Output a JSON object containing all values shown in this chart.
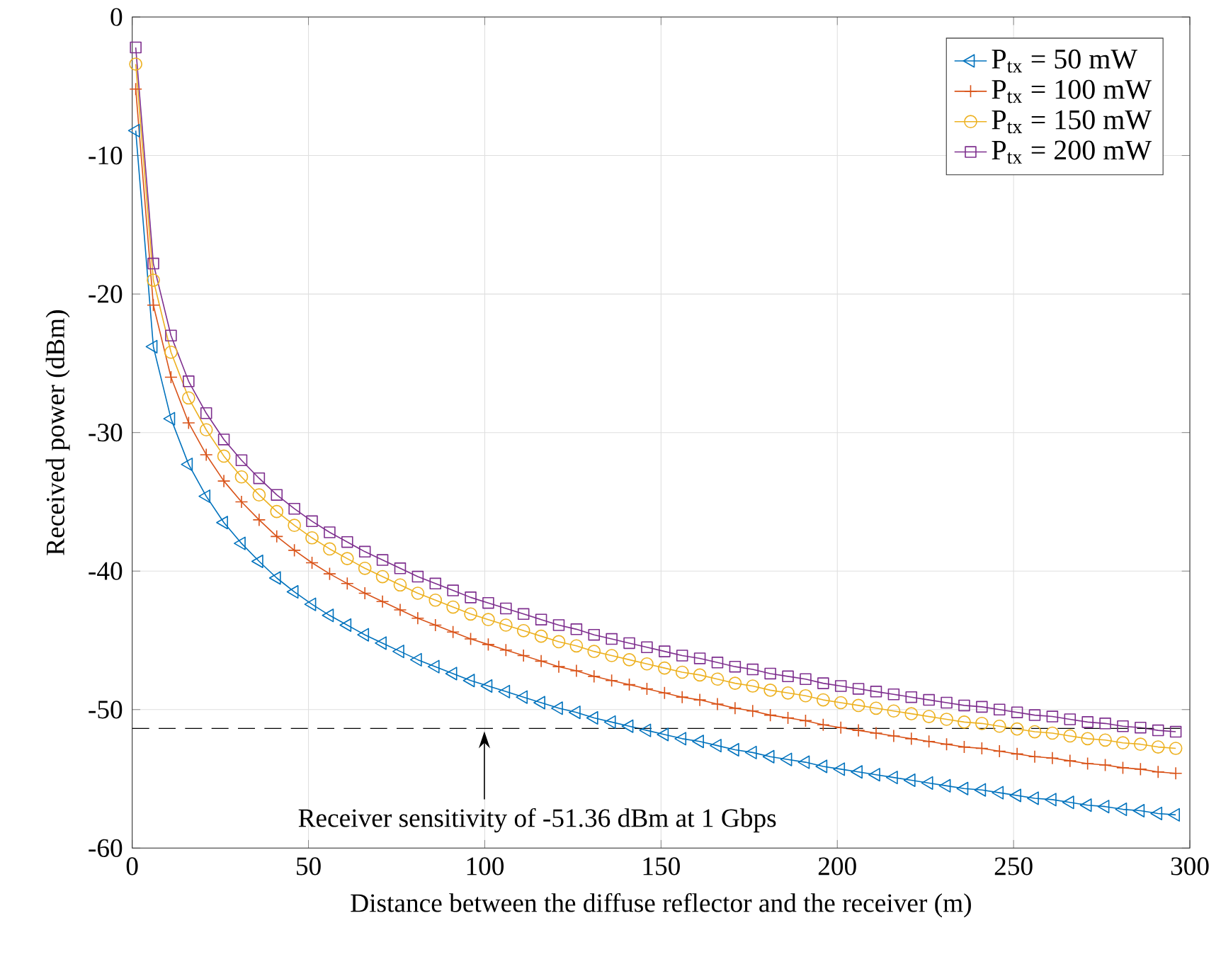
{
  "chart_data": {
    "type": "line",
    "xlabel": "Distance between the diffuse reflector and the receiver (m)",
    "ylabel": "Received power (dBm)",
    "xlim": [
      0,
      300
    ],
    "ylim": [
      -60,
      0
    ],
    "xticks": [
      0,
      50,
      100,
      150,
      200,
      250,
      300
    ],
    "yticks": [
      -60,
      -50,
      -40,
      -30,
      -20,
      -10,
      0
    ],
    "grid": true,
    "legend": "top right",
    "x": [
      1,
      6,
      11,
      16,
      21,
      26,
      31,
      36,
      41,
      46,
      51,
      56,
      61,
      66,
      71,
      76,
      81,
      86,
      91,
      96,
      101,
      106,
      111,
      116,
      121,
      126,
      131,
      136,
      141,
      146,
      151,
      156,
      161,
      166,
      171,
      176,
      181,
      186,
      191,
      196,
      201,
      206,
      211,
      216,
      221,
      226,
      231,
      236,
      241,
      246,
      251,
      256,
      261,
      266,
      271,
      276,
      281,
      286,
      291,
      296
    ],
    "series": [
      {
        "name": "P$_{tx}$ = 50 mW",
        "color": "#0072bd",
        "marker": "triangle",
        "values": [
          -8.2,
          -23.8,
          -29.0,
          -32.3,
          -34.6,
          -36.5,
          -38.0,
          -39.3,
          -40.5,
          -41.5,
          -42.4,
          -43.2,
          -43.9,
          -44.6,
          -45.2,
          -45.8,
          -46.4,
          -46.9,
          -47.4,
          -47.9,
          -48.3,
          -48.7,
          -49.1,
          -49.5,
          -49.9,
          -50.2,
          -50.6,
          -50.9,
          -51.2,
          -51.5,
          -51.8,
          -52.1,
          -52.3,
          -52.6,
          -52.9,
          -53.1,
          -53.4,
          -53.6,
          -53.8,
          -54.1,
          -54.3,
          -54.5,
          -54.7,
          -54.9,
          -55.1,
          -55.3,
          -55.5,
          -55.7,
          -55.8,
          -56.0,
          -56.2,
          -56.4,
          -56.5,
          -56.7,
          -56.9,
          -57.0,
          -57.2,
          -57.3,
          -57.5,
          -57.6
        ]
      },
      {
        "name": "P$_{tx}$ = 100 mW",
        "color": "#d95319",
        "marker": "cross",
        "values": [
          -5.2,
          -20.8,
          -26.0,
          -29.3,
          -31.6,
          -33.5,
          -35.0,
          -36.3,
          -37.5,
          -38.5,
          -39.4,
          -40.2,
          -40.9,
          -41.6,
          -42.2,
          -42.8,
          -43.4,
          -43.9,
          -44.4,
          -44.9,
          -45.3,
          -45.7,
          -46.1,
          -46.5,
          -46.9,
          -47.2,
          -47.6,
          -47.9,
          -48.2,
          -48.5,
          -48.8,
          -49.1,
          -49.3,
          -49.6,
          -49.9,
          -50.1,
          -50.4,
          -50.6,
          -50.8,
          -51.1,
          -51.3,
          -51.5,
          -51.7,
          -51.9,
          -52.1,
          -52.3,
          -52.5,
          -52.7,
          -52.8,
          -53.0,
          -53.2,
          -53.4,
          -53.5,
          -53.7,
          -53.9,
          -54.0,
          -54.2,
          -54.3,
          -54.5,
          -54.6
        ]
      },
      {
        "name": "P$_{tx}$ = 150 mW",
        "color": "#edb120",
        "marker": "circle",
        "values": [
          -3.4,
          -19.0,
          -24.2,
          -27.5,
          -29.8,
          -31.7,
          -33.2,
          -34.5,
          -35.7,
          -36.7,
          -37.6,
          -38.4,
          -39.1,
          -39.8,
          -40.4,
          -41.0,
          -41.6,
          -42.1,
          -42.6,
          -43.1,
          -43.5,
          -43.9,
          -44.3,
          -44.7,
          -45.1,
          -45.4,
          -45.8,
          -46.1,
          -46.4,
          -46.7,
          -47.0,
          -47.3,
          -47.5,
          -47.8,
          -48.1,
          -48.3,
          -48.6,
          -48.8,
          -49.0,
          -49.3,
          -49.5,
          -49.7,
          -49.9,
          -50.1,
          -50.3,
          -50.5,
          -50.7,
          -50.9,
          -51.0,
          -51.2,
          -51.4,
          -51.6,
          -51.7,
          -51.9,
          -52.1,
          -52.2,
          -52.4,
          -52.5,
          -52.7,
          -52.8
        ]
      },
      {
        "name": "P$_{tx}$ = 200 mW",
        "color": "#7e2f8e",
        "marker": "square",
        "values": [
          -2.2,
          -17.8,
          -23.0,
          -26.3,
          -28.6,
          -30.5,
          -32.0,
          -33.3,
          -34.5,
          -35.5,
          -36.4,
          -37.2,
          -37.9,
          -38.6,
          -39.2,
          -39.8,
          -40.4,
          -40.9,
          -41.4,
          -41.9,
          -42.3,
          -42.7,
          -43.1,
          -43.5,
          -43.9,
          -44.2,
          -44.6,
          -44.9,
          -45.2,
          -45.5,
          -45.8,
          -46.1,
          -46.3,
          -46.6,
          -46.9,
          -47.1,
          -47.4,
          -47.6,
          -47.8,
          -48.1,
          -48.3,
          -48.5,
          -48.7,
          -48.9,
          -49.1,
          -49.3,
          -49.5,
          -49.7,
          -49.8,
          -50.0,
          -50.2,
          -50.4,
          -50.5,
          -50.7,
          -50.9,
          -51.0,
          -51.2,
          -51.3,
          -51.5,
          -51.6
        ]
      }
    ],
    "ref_lines": [
      {
        "axis": "y",
        "value": -51.36,
        "color": "#000000",
        "line_style": "dashed"
      }
    ],
    "annotations": [
      "Receiver sensitivity of -51.36 dBm at 1 Gbps"
    ]
  }
}
